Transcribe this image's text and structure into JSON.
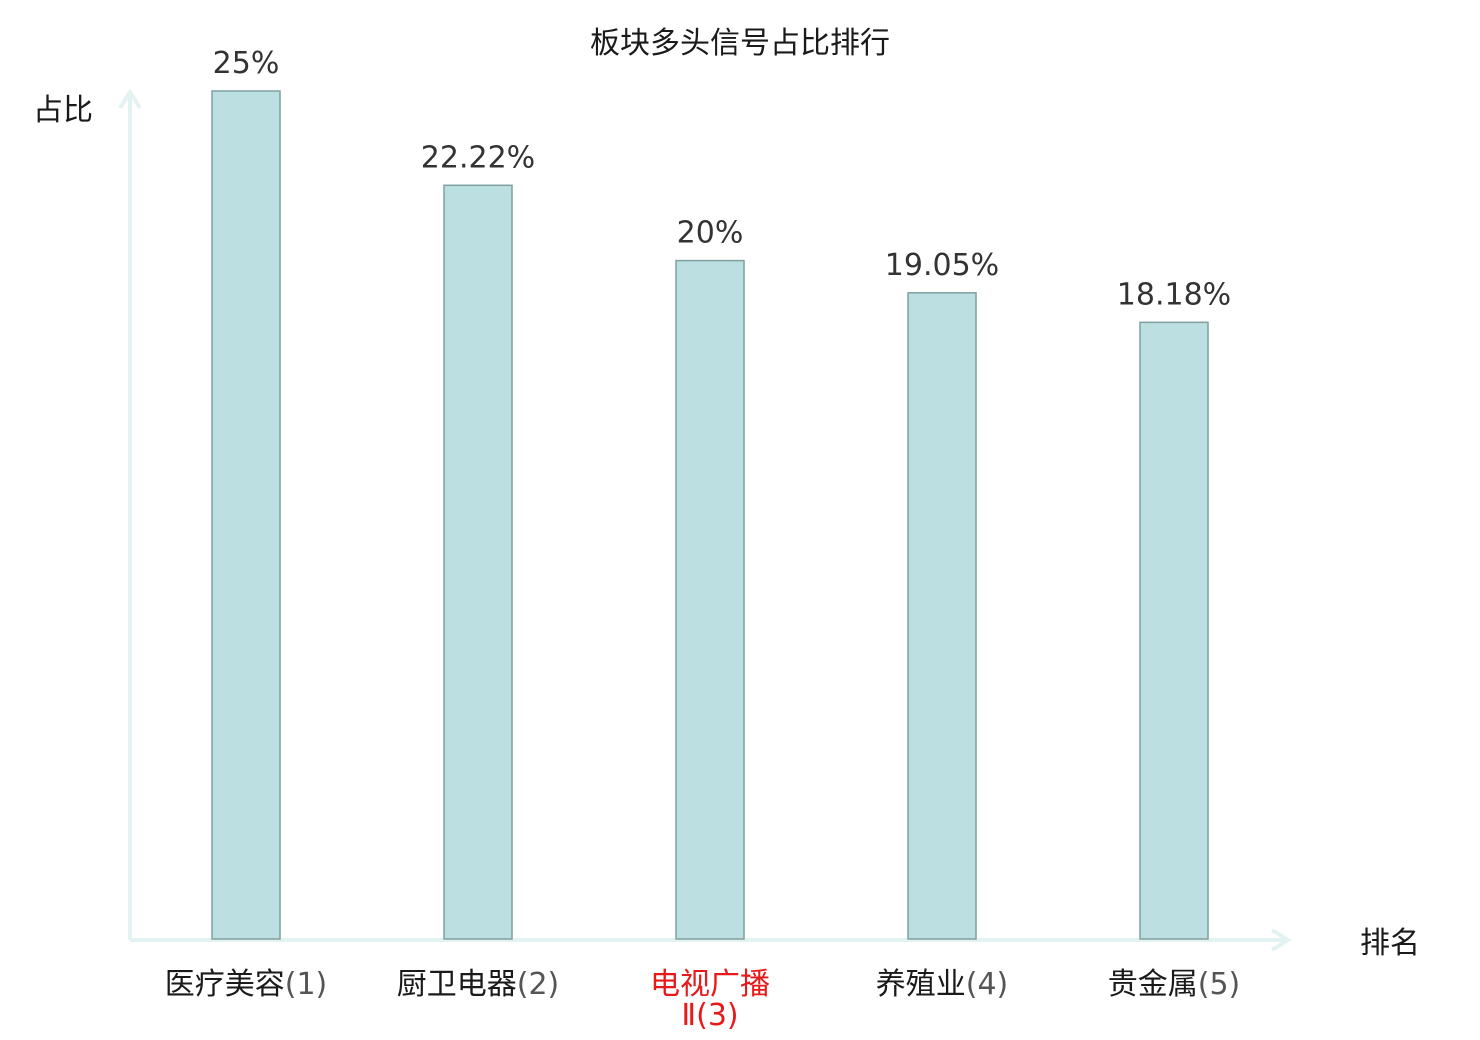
{
  "chart_data": {
    "type": "bar",
    "title": "板块多头信号占比排行",
    "ylabel": "占比",
    "xlabel": "排名",
    "categories": [
      {
        "name": "医疗美容",
        "rank": "(1)",
        "highlight": false
      },
      {
        "name": "厨卫电器",
        "rank": "(2)",
        "highlight": false
      },
      {
        "name": "电视广播",
        "name_line2": "Ⅱ",
        "rank": "(3)",
        "highlight": true
      },
      {
        "name": "养殖业",
        "rank": "(4)",
        "highlight": false
      },
      {
        "name": "贵金属",
        "rank": "(5)",
        "highlight": false
      }
    ],
    "values": [
      25,
      22.22,
      20,
      19.05,
      18.18
    ],
    "value_labels": [
      "25%",
      "22.22%",
      "20%",
      "19.05%",
      "18.18%"
    ],
    "ylim": [
      0,
      25
    ],
    "grid": false,
    "colors": {
      "bar_fill": "#bce0e1",
      "bar_stroke": "#7f9fa0",
      "axis": "#e3f3f1",
      "highlight_text": "#e8191b",
      "rank_text": "#555555",
      "cat_text": "#1a1a1a"
    }
  }
}
